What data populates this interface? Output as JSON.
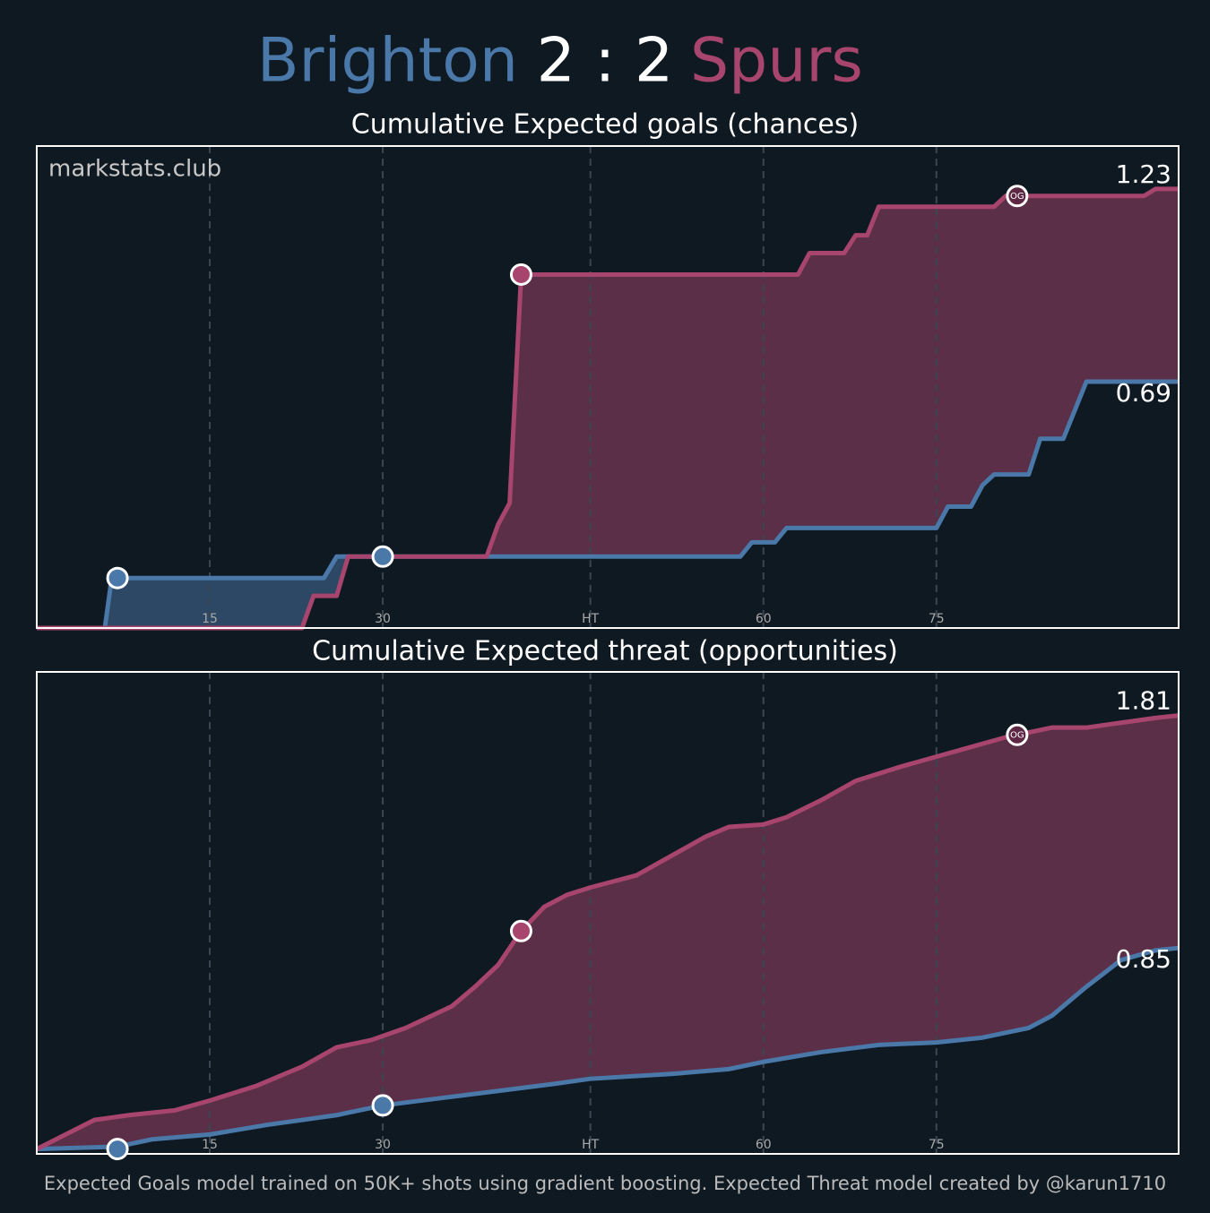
{
  "header": {
    "home": "Brighton",
    "score": "2 : 2",
    "away": "Spurs"
  },
  "footer": "Expected Goals model trained on 50K+ shots using gradient boosting. Expected Threat model created by @karun1710",
  "chart_data": [
    {
      "type": "step-area",
      "title": "Cumulative Expected goals (chances)",
      "watermark": "markstats.club",
      "xlim": [
        0,
        99
      ],
      "ylim": [
        0,
        1.35
      ],
      "xticks": [
        15,
        30,
        {
          "value": 48,
          "label": "HT"
        },
        {
          "value": 63,
          "label": "60"
        },
        {
          "value": 78,
          "label": "75"
        }
      ],
      "grid": true,
      "series": [
        {
          "color": "#4a78a8",
          "x": [
            0,
            5.9,
            6.5,
            24.9,
            26,
            61,
            62,
            64,
            65,
            78,
            79,
            81,
            82,
            83,
            86,
            87,
            89,
            91,
            99
          ],
          "values": [
            0,
            0,
            0.14,
            0.14,
            0.2,
            0.2,
            0.24,
            0.24,
            0.28,
            0.28,
            0.34,
            0.34,
            0.4,
            0.43,
            0.43,
            0.53,
            0.53,
            0.69,
            0.69
          ],
          "goals": [
            {
              "x": 7,
              "value": 0.14
            },
            {
              "x": 30,
              "value": 0.2
            }
          ]
        },
        {
          "color": "#a8456e",
          "x": [
            0,
            23,
            24,
            26,
            27,
            39,
            40,
            41,
            42,
            66,
            67,
            70,
            71,
            72,
            73,
            83,
            84,
            96,
            97,
            99
          ],
          "values": [
            0,
            0,
            0.09,
            0.09,
            0.2,
            0.2,
            0.29,
            0.35,
            0.99,
            0.99,
            1.05,
            1.05,
            1.1,
            1.1,
            1.18,
            1.18,
            1.21,
            1.21,
            1.23,
            1.23
          ],
          "goals": [
            {
              "x": 42,
              "value": 0.99
            },
            {
              "x": 85,
              "value": 1.21,
              "label": "OG"
            }
          ]
        }
      ]
    },
    {
      "type": "area",
      "title": "Cumulative Expected threat (opportunities)",
      "xlim": [
        0,
        99
      ],
      "ylim": [
        0,
        1.99
      ],
      "xticks": [
        15,
        30,
        {
          "value": 48,
          "label": "HT"
        },
        {
          "value": 63,
          "label": "60"
        },
        {
          "value": 78,
          "label": "75"
        }
      ],
      "grid": true,
      "series": [
        {
          "color": "#4a78a8",
          "x": [
            0,
            7,
            10,
            15,
            20,
            26,
            30,
            35,
            40,
            45,
            48,
            55,
            60,
            63,
            68,
            73,
            78,
            82,
            86,
            88,
            91,
            94,
            97,
            99
          ],
          "values": [
            0.02,
            0.03,
            0.06,
            0.08,
            0.12,
            0.16,
            0.2,
            0.23,
            0.26,
            0.29,
            0.31,
            0.33,
            0.35,
            0.38,
            0.42,
            0.45,
            0.46,
            0.48,
            0.52,
            0.57,
            0.69,
            0.8,
            0.84,
            0.85
          ],
          "goals": [
            {
              "x": 7,
              "value": 0.02
            },
            {
              "x": 30,
              "value": 0.2
            }
          ]
        },
        {
          "color": "#a8456e",
          "x": [
            0,
            5,
            8,
            12,
            15,
            19,
            23,
            26,
            29,
            32,
            36,
            38,
            40,
            42,
            44,
            46,
            48,
            52,
            55,
            58,
            60,
            63,
            65,
            68,
            71,
            75,
            78,
            81,
            84,
            86,
            88,
            91,
            94,
            97,
            99
          ],
          "values": [
            0.02,
            0.14,
            0.16,
            0.18,
            0.22,
            0.28,
            0.36,
            0.44,
            0.47,
            0.52,
            0.61,
            0.69,
            0.78,
            0.92,
            1.02,
            1.07,
            1.1,
            1.15,
            1.23,
            1.31,
            1.35,
            1.36,
            1.39,
            1.46,
            1.54,
            1.6,
            1.64,
            1.68,
            1.72,
            1.74,
            1.76,
            1.76,
            1.78,
            1.8,
            1.81
          ],
          "goals": [
            {
              "x": 42,
              "value": 0.92
            },
            {
              "x": 85,
              "value": 1.73,
              "label": "OG"
            }
          ]
        }
      ]
    }
  ]
}
